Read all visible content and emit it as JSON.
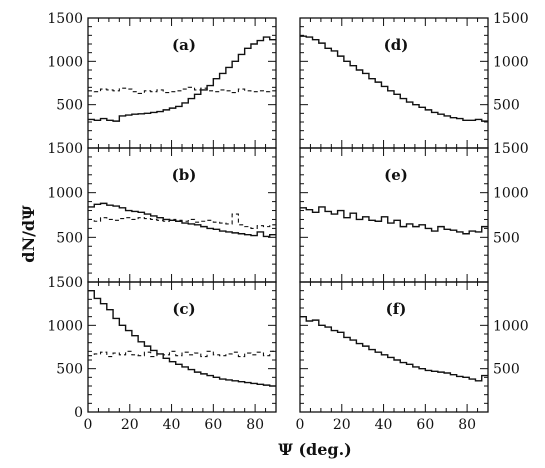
{
  "chart_data": {
    "type": "step",
    "layout": "3 rows x 2 columns",
    "x_axis": {
      "title": "Ψ (deg.)",
      "xlim": [
        0,
        90
      ],
      "ticks": [
        0,
        20,
        40,
        60,
        80
      ],
      "bins": 30,
      "bin_width": 3
    },
    "y_axis": {
      "title": "dN/dΨ",
      "ylim": [
        0,
        1500
      ],
      "ticks": [
        500,
        1000,
        1500
      ],
      "ticks_bottom_left": [
        0,
        500,
        1000,
        1500
      ]
    },
    "panels": [
      {
        "label": "(a)",
        "series": [
          {
            "style": "solid",
            "values": [
              330,
              320,
              340,
              320,
              310,
              370,
              380,
              390,
              395,
              400,
              410,
              420,
              440,
              460,
              480,
              520,
              570,
              620,
              670,
              720,
              800,
              860,
              930,
              1000,
              1080,
              1150,
              1200,
              1240,
              1280,
              1250
            ]
          },
          {
            "style": "dashed",
            "values": [
              660,
              650,
              680,
              670,
              660,
              690,
              680,
              650,
              630,
              660,
              650,
              670,
              640,
              650,
              660,
              680,
              700,
              670,
              690,
              660,
              650,
              670,
              660,
              640,
              680,
              660,
              650,
              660,
              650,
              660
            ]
          }
        ]
      },
      {
        "label": "(d)",
        "series": [
          {
            "style": "solid",
            "values": [
              1290,
              1280,
              1250,
              1210,
              1150,
              1120,
              1060,
              1000,
              950,
              900,
              860,
              800,
              760,
              710,
              660,
              620,
              570,
              530,
              500,
              470,
              440,
              410,
              390,
              370,
              350,
              340,
              320,
              320,
              330,
              310
            ]
          }
        ]
      },
      {
        "label": "(b)",
        "series": [
          {
            "style": "solid",
            "values": [
              840,
              870,
              880,
              860,
              850,
              830,
              800,
              790,
              780,
              760,
              740,
              720,
              700,
              690,
              680,
              660,
              650,
              640,
              620,
              600,
              590,
              570,
              560,
              550,
              540,
              530,
              520,
              560,
              510,
              530
            ]
          },
          {
            "style": "dashed",
            "values": [
              700,
              680,
              720,
              700,
              690,
              710,
              720,
              700,
              720,
              710,
              700,
              690,
              680,
              700,
              690,
              680,
              700,
              670,
              680,
              690,
              670,
              660,
              650,
              760,
              640,
              620,
              600,
              630,
              620,
              640
            ]
          }
        ]
      },
      {
        "label": "(e)",
        "series": [
          {
            "style": "solid",
            "values": [
              830,
              810,
              780,
              840,
              790,
              760,
              800,
              720,
              770,
              700,
              730,
              690,
              680,
              730,
              660,
              690,
              620,
              650,
              620,
              640,
              600,
              570,
              620,
              590,
              580,
              560,
              540,
              570,
              560,
              620
            ]
          }
        ]
      },
      {
        "label": "(c)",
        "series": [
          {
            "style": "solid",
            "values": [
              1400,
              1310,
              1250,
              1180,
              1080,
              1000,
              940,
              880,
              810,
              760,
              710,
              670,
              620,
              580,
              550,
              520,
              490,
              460,
              440,
              420,
              400,
              380,
              370,
              360,
              350,
              340,
              330,
              320,
              310,
              300
            ]
          },
          {
            "style": "dashed",
            "values": [
              650,
              670,
              690,
              640,
              680,
              660,
              700,
              660,
              650,
              690,
              640,
              670,
              660,
              700,
              650,
              690,
              660,
              680,
              640,
              700,
              660,
              650,
              670,
              690,
              640,
              680,
              660,
              690,
              650,
              700
            ]
          }
        ]
      },
      {
        "label": "(f)",
        "series": [
          {
            "style": "solid",
            "values": [
              1100,
              1050,
              1060,
              1000,
              980,
              940,
              920,
              860,
              830,
              790,
              760,
              720,
              690,
              660,
              630,
              600,
              570,
              550,
              520,
              500,
              480,
              470,
              460,
              450,
              430,
              410,
              400,
              380,
              360,
              420
            ]
          }
        ]
      }
    ]
  }
}
